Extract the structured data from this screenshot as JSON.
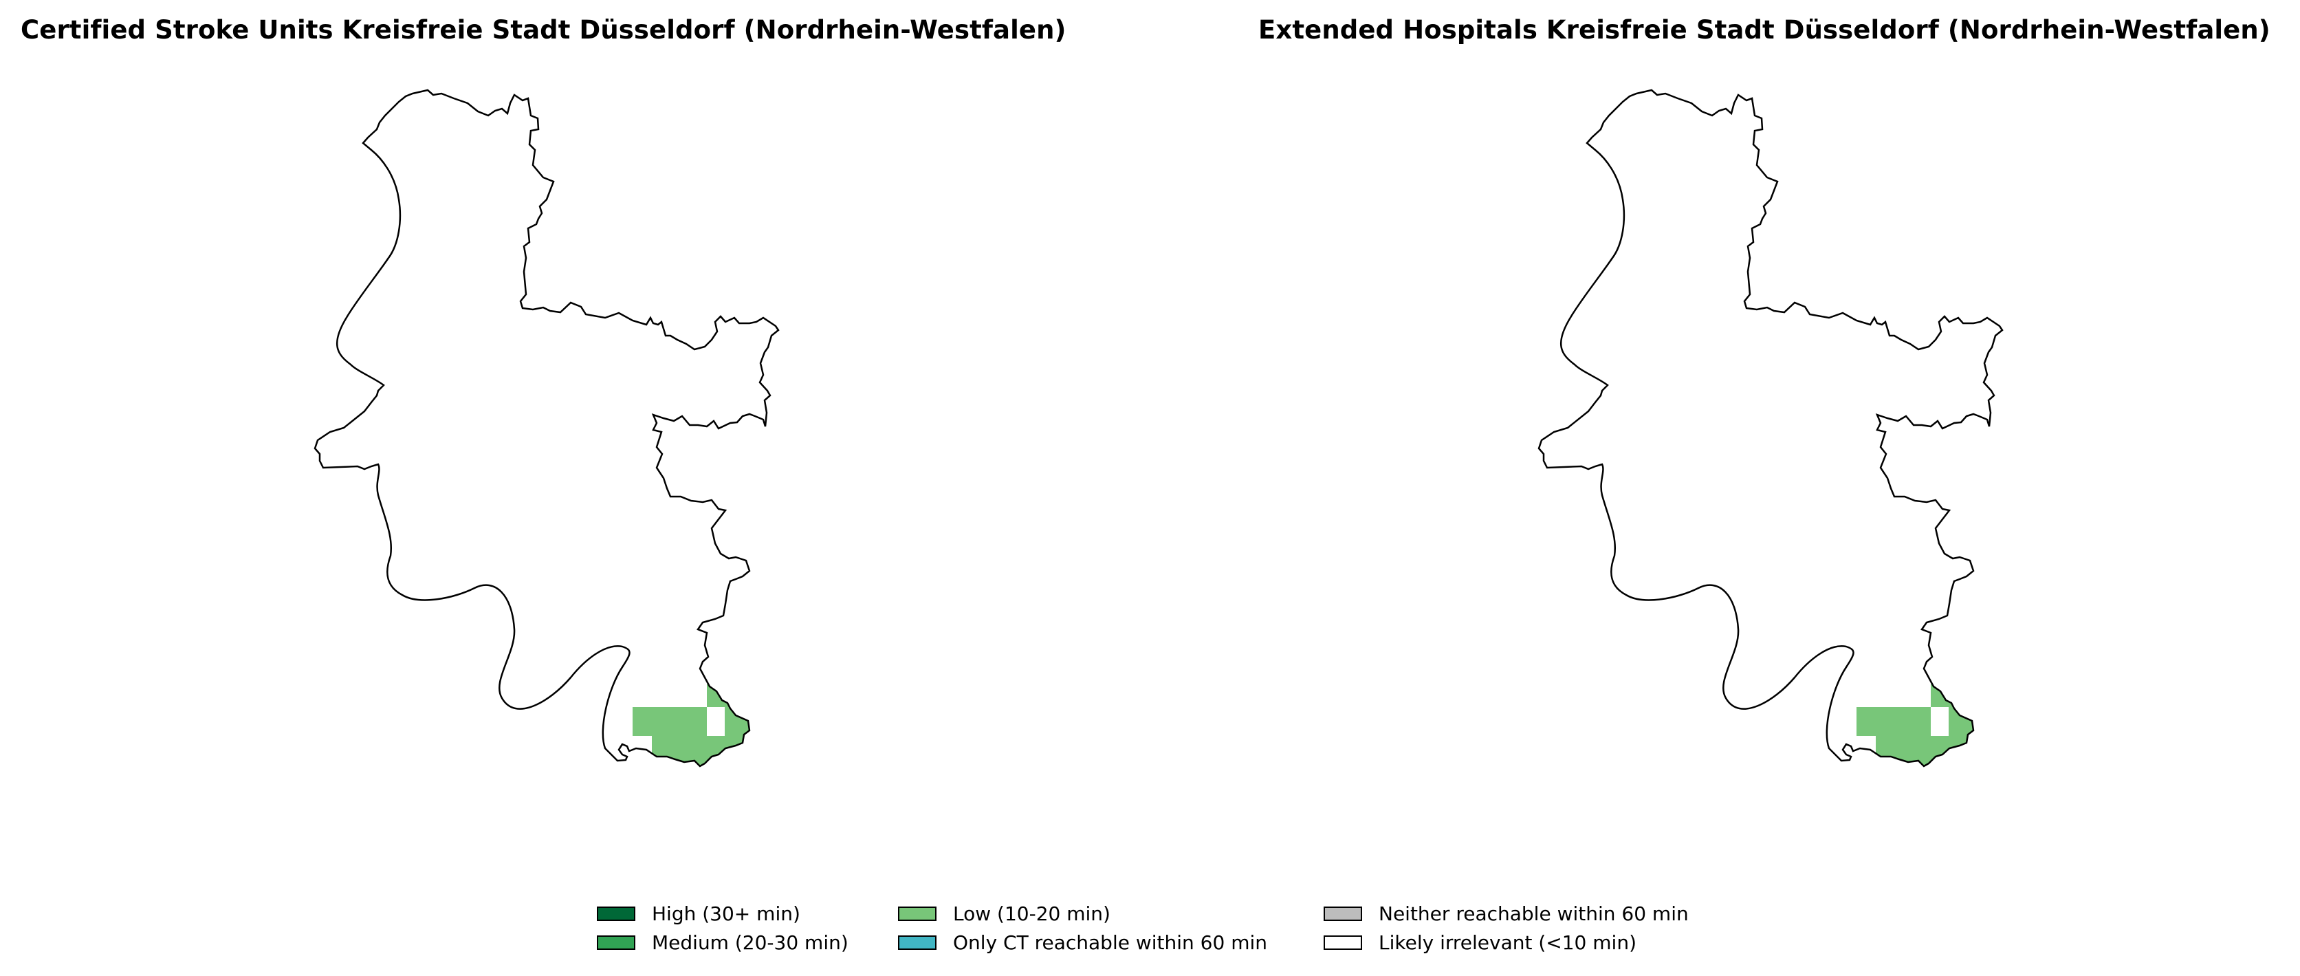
{
  "panels": [
    {
      "title": "Certified Stroke Units Kreisfreie Stadt Düsseldorf (Nordrhein-Westfalen)"
    },
    {
      "title": "Extended Hospitals Kreisfreie Stadt Düsseldorf (Nordrhein-Westfalen)"
    }
  ],
  "legend": [
    {
      "label": "High (30+ min)",
      "color": "#006837"
    },
    {
      "label": "Medium (20-30 min)",
      "color": "#31a354"
    },
    {
      "label": "Low (10-20 min)",
      "color": "#78c679"
    },
    {
      "label": "Only CT reachable within 60 min",
      "color": "#41b6c4"
    },
    {
      "label": "Neither reachable within 60 min",
      "color": "#bdbdbd"
    },
    {
      "label": "Likely irrelevant (<10 min)",
      "color": "#ffffff"
    }
  ]
}
